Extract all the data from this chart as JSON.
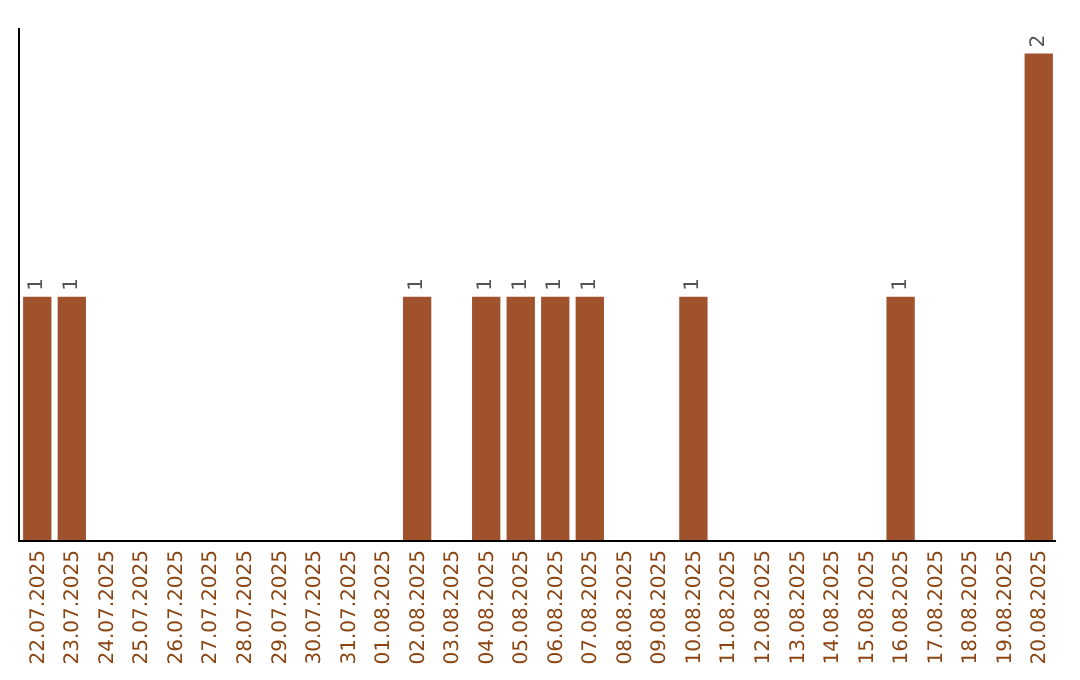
{
  "chart_data": {
    "type": "bar",
    "tick_labels": "x",
    "grid": false,
    "legend": false,
    "categories": [
      "22.07.2025",
      "23.07.2025",
      "24.07.2025",
      "25.07.2025",
      "26.07.2025",
      "27.07.2025",
      "28.07.2025",
      "29.07.2025",
      "30.07.2025",
      "31.07.2025",
      "01.08.2025",
      "02.08.2025",
      "03.08.2025",
      "04.08.2025",
      "05.08.2025",
      "06.08.2025",
      "07.08.2025",
      "08.08.2025",
      "09.08.2025",
      "10.08.2025",
      "11.08.2025",
      "12.08.2025",
      "13.08.2025",
      "14.08.2025",
      "15.08.2025",
      "16.08.2025",
      "17.08.2025",
      "18.08.2025",
      "19.08.2025",
      "20.08.2025"
    ],
    "values": [
      1,
      1,
      0,
      0,
      0,
      0,
      0,
      0,
      0,
      0,
      0,
      1,
      0,
      1,
      1,
      1,
      1,
      0,
      0,
      1,
      0,
      0,
      0,
      0,
      0,
      1,
      0,
      0,
      0,
      2
    ],
    "value_labels": [
      "1",
      "1",
      null,
      null,
      null,
      null,
      null,
      null,
      null,
      null,
      null,
      "1",
      null,
      "1",
      "1",
      "1",
      "1",
      null,
      null,
      "1",
      null,
      null,
      null,
      null,
      null,
      "1",
      null,
      null,
      null,
      "2"
    ],
    "color": "#a0522d"
  }
}
